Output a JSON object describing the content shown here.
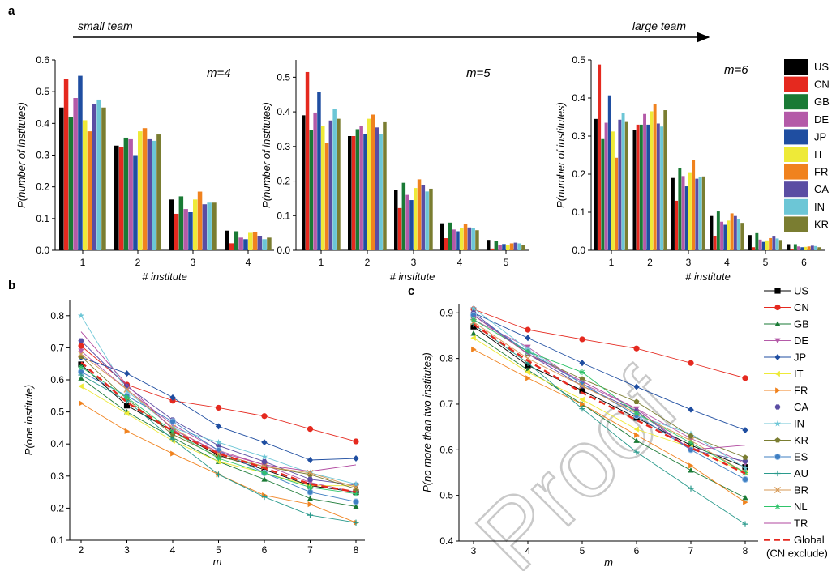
{
  "figure": {
    "panel_labels": [
      "a",
      "b",
      "c"
    ],
    "arrow": {
      "left_label": "small team",
      "right_label": "large team"
    },
    "watermark": "Proof"
  },
  "colors": {
    "US": "#000000",
    "CN": "#e5291f",
    "GB": "#1a7a35",
    "DE": "#b45aa8",
    "JP": "#1f4ea1",
    "IT": "#eeea38",
    "FR": "#f0821e",
    "CA": "#5a4da3",
    "IN": "#6cc6d6",
    "KR": "#7a7d31",
    "ES": "#3f7fc2",
    "AU": "#2a9a8c",
    "BR": "#d79a56",
    "NL": "#2fc46a",
    "TR": "#b0479f",
    "Global": "#e5291f"
  },
  "chart_data": [
    {
      "type": "bar",
      "panel": "a",
      "annotation": "m=4",
      "xlabel": "# institute",
      "ylabel": "P(number of institutes)",
      "ylim": [
        0,
        0.6
      ],
      "yticks": [
        "0.0",
        "0.1",
        "0.2",
        "0.3",
        "0.4",
        "0.5",
        "0.6"
      ],
      "categories": [
        "1",
        "2",
        "3",
        "4"
      ],
      "series": [
        {
          "name": "US",
          "values": [
            0.45,
            0.33,
            0.16,
            0.062
          ]
        },
        {
          "name": "CN",
          "values": [
            0.54,
            0.325,
            0.115,
            0.022
          ]
        },
        {
          "name": "GB",
          "values": [
            0.42,
            0.355,
            0.17,
            0.06
          ]
        },
        {
          "name": "DE",
          "values": [
            0.48,
            0.35,
            0.13,
            0.04
          ]
        },
        {
          "name": "JP",
          "values": [
            0.55,
            0.3,
            0.12,
            0.035
          ]
        },
        {
          "name": "IT",
          "values": [
            0.41,
            0.375,
            0.16,
            0.055
          ]
        },
        {
          "name": "FR",
          "values": [
            0.375,
            0.385,
            0.185,
            0.058
          ]
        },
        {
          "name": "CA",
          "values": [
            0.46,
            0.35,
            0.145,
            0.045
          ]
        },
        {
          "name": "IN",
          "values": [
            0.475,
            0.345,
            0.15,
            0.035
          ]
        },
        {
          "name": "KR",
          "values": [
            0.45,
            0.365,
            0.15,
            0.04
          ]
        }
      ]
    },
    {
      "type": "bar",
      "panel": "a",
      "annotation": "m=5",
      "xlabel": "# institute",
      "ylabel": "P(number of institutes)",
      "ylim": [
        0,
        0.55
      ],
      "yticks": [
        "0.0",
        "0.1",
        "0.2",
        "0.3",
        "0.4",
        "0.5"
      ],
      "categories": [
        "1",
        "2",
        "3",
        "4",
        "5"
      ],
      "series": [
        {
          "name": "US",
          "values": [
            0.39,
            0.33,
            0.175,
            0.078,
            0.03
          ]
        },
        {
          "name": "CN",
          "values": [
            0.515,
            0.33,
            0.122,
            0.035,
            0.005
          ]
        },
        {
          "name": "GB",
          "values": [
            0.348,
            0.35,
            0.195,
            0.08,
            0.028
          ]
        },
        {
          "name": "DE",
          "values": [
            0.398,
            0.36,
            0.16,
            0.06,
            0.015
          ]
        },
        {
          "name": "JP",
          "values": [
            0.458,
            0.335,
            0.145,
            0.055,
            0.018
          ]
        },
        {
          "name": "IT",
          "values": [
            0.36,
            0.38,
            0.18,
            0.065,
            0.016
          ]
        },
        {
          "name": "FR",
          "values": [
            0.31,
            0.392,
            0.205,
            0.075,
            0.02
          ]
        },
        {
          "name": "CA",
          "values": [
            0.375,
            0.355,
            0.188,
            0.066,
            0.022
          ]
        },
        {
          "name": "IN",
          "values": [
            0.408,
            0.335,
            0.17,
            0.064,
            0.02
          ]
        },
        {
          "name": "KR",
          "values": [
            0.38,
            0.37,
            0.178,
            0.058,
            0.015
          ]
        }
      ]
    },
    {
      "type": "bar",
      "panel": "a",
      "annotation": "m=6",
      "xlabel": "# institute",
      "ylabel": "P(number of institutes)",
      "ylim": [
        0,
        0.5
      ],
      "yticks": [
        "0.0",
        "0.1",
        "0.2",
        "0.3",
        "0.4",
        "0.5"
      ],
      "categories": [
        "1",
        "2",
        "3",
        "4",
        "5",
        "6"
      ],
      "series": [
        {
          "name": "US",
          "values": [
            0.345,
            0.315,
            0.19,
            0.09,
            0.04,
            0.016
          ]
        },
        {
          "name": "CN",
          "values": [
            0.488,
            0.33,
            0.13,
            0.037,
            0.008,
            0.003
          ]
        },
        {
          "name": "GB",
          "values": [
            0.292,
            0.33,
            0.215,
            0.102,
            0.045,
            0.016
          ]
        },
        {
          "name": "DE",
          "values": [
            0.335,
            0.358,
            0.195,
            0.075,
            0.028,
            0.01
          ]
        },
        {
          "name": "JP",
          "values": [
            0.407,
            0.33,
            0.168,
            0.067,
            0.022,
            0.008
          ]
        },
        {
          "name": "IT",
          "values": [
            0.312,
            0.365,
            0.205,
            0.078,
            0.026,
            0.009
          ]
        },
        {
          "name": "FR",
          "values": [
            0.243,
            0.385,
            0.238,
            0.097,
            0.032,
            0.01
          ]
        },
        {
          "name": "CA",
          "values": [
            0.343,
            0.333,
            0.188,
            0.09,
            0.036,
            0.012
          ]
        },
        {
          "name": "IN",
          "values": [
            0.36,
            0.325,
            0.192,
            0.082,
            0.031,
            0.011
          ]
        },
        {
          "name": "KR",
          "values": [
            0.337,
            0.368,
            0.194,
            0.072,
            0.027,
            0.008
          ]
        }
      ]
    },
    {
      "type": "line",
      "panel": "b",
      "xlabel": "m",
      "ylabel": "P(one institute)",
      "xlim": [
        2,
        8
      ],
      "ylim": [
        0.1,
        0.85
      ],
      "xticks": [
        "2",
        "3",
        "4",
        "5",
        "6",
        "7",
        "8"
      ],
      "yticks": [
        "0.1",
        "0.2",
        "0.3",
        "0.4",
        "0.5",
        "0.6",
        "0.7",
        "0.8"
      ],
      "x": [
        2,
        3,
        4,
        5,
        6,
        7,
        8
      ],
      "series": [
        {
          "name": "US",
          "values": [
            0.648,
            0.52,
            0.44,
            0.365,
            0.32,
            0.27,
            0.25
          ]
        },
        {
          "name": "CN",
          "values": [
            0.706,
            0.585,
            0.535,
            0.513,
            0.487,
            0.447,
            0.408
          ]
        },
        {
          "name": "GB",
          "values": [
            0.605,
            0.5,
            0.42,
            0.345,
            0.29,
            0.23,
            0.205
          ]
        },
        {
          "name": "DE",
          "values": [
            0.69,
            0.57,
            0.46,
            0.38,
            0.335,
            0.28,
            0.25
          ]
        },
        {
          "name": "JP",
          "values": [
            0.67,
            0.62,
            0.545,
            0.455,
            0.405,
            0.35,
            0.355
          ]
        },
        {
          "name": "IT",
          "values": [
            0.58,
            0.495,
            0.41,
            0.345,
            0.31,
            0.27,
            0.27
          ]
        },
        {
          "name": "FR",
          "values": [
            0.527,
            0.44,
            0.37,
            0.305,
            0.24,
            0.212,
            0.155
          ]
        },
        {
          "name": "CA",
          "values": [
            0.722,
            0.58,
            0.475,
            0.395,
            0.345,
            0.29,
            0.272
          ]
        },
        {
          "name": "IN",
          "values": [
            0.8,
            0.565,
            0.45,
            0.405,
            0.36,
            0.31,
            0.275
          ]
        },
        {
          "name": "KR",
          "values": [
            0.673,
            0.54,
            0.43,
            0.36,
            0.33,
            0.305,
            0.26
          ]
        },
        {
          "name": "ES",
          "values": [
            0.625,
            0.55,
            0.47,
            0.38,
            0.31,
            0.25,
            0.22
          ]
        },
        {
          "name": "AU",
          "values": [
            0.615,
            0.535,
            0.415,
            0.305,
            0.235,
            0.178,
            0.155
          ]
        },
        {
          "name": "BR",
          "values": [
            0.68,
            0.57,
            0.45,
            0.37,
            0.33,
            0.31,
            0.265
          ]
        },
        {
          "name": "NL",
          "values": [
            0.64,
            0.545,
            0.44,
            0.355,
            0.31,
            0.265,
            0.245
          ]
        },
        {
          "name": "TR",
          "values": [
            0.75,
            0.585,
            0.445,
            0.375,
            0.335,
            0.315,
            0.335
          ]
        },
        {
          "name": "Global",
          "values": [
            0.655,
            0.53,
            0.44,
            0.37,
            0.325,
            0.275,
            0.25
          ]
        }
      ]
    },
    {
      "type": "line",
      "panel": "c",
      "xlabel": "m",
      "ylabel": "P(no more than two institutes)",
      "xlim": [
        3,
        8
      ],
      "ylim": [
        0.4,
        0.92
      ],
      "xticks": [
        "3",
        "4",
        "5",
        "6",
        "7",
        "8"
      ],
      "yticks": [
        "0.4",
        "0.5",
        "0.6",
        "0.7",
        "0.8",
        "0.9"
      ],
      "x": [
        3,
        4,
        5,
        6,
        7,
        8
      ],
      "series": [
        {
          "name": "US",
          "values": [
            0.87,
            0.785,
            0.73,
            0.67,
            0.61,
            0.562
          ]
        },
        {
          "name": "CN",
          "values": [
            0.908,
            0.863,
            0.842,
            0.822,
            0.79,
            0.757
          ]
        },
        {
          "name": "GB",
          "values": [
            0.855,
            0.775,
            0.7,
            0.62,
            0.555,
            0.495
          ]
        },
        {
          "name": "DE",
          "values": [
            0.885,
            0.825,
            0.745,
            0.69,
            0.625,
            0.57
          ]
        },
        {
          "name": "JP",
          "values": [
            0.9,
            0.845,
            0.79,
            0.738,
            0.688,
            0.643
          ]
        },
        {
          "name": "IT",
          "values": [
            0.845,
            0.77,
            0.71,
            0.645,
            0.605,
            0.55
          ]
        },
        {
          "name": "FR",
          "values": [
            0.82,
            0.757,
            0.7,
            0.632,
            0.565,
            0.485
          ]
        },
        {
          "name": "CA",
          "values": [
            0.9,
            0.81,
            0.74,
            0.685,
            0.6,
            0.575
          ]
        },
        {
          "name": "IN",
          "values": [
            0.91,
            0.82,
            0.745,
            0.675,
            0.635,
            0.56
          ]
        },
        {
          "name": "KR",
          "values": [
            0.895,
            0.81,
            0.755,
            0.705,
            0.63,
            0.583
          ]
        },
        {
          "name": "ES",
          "values": [
            0.895,
            0.815,
            0.745,
            0.675,
            0.6,
            0.535
          ]
        },
        {
          "name": "AU",
          "values": [
            0.875,
            0.79,
            0.69,
            0.595,
            0.515,
            0.437
          ]
        },
        {
          "name": "BR",
          "values": [
            0.88,
            0.8,
            0.74,
            0.68,
            0.62,
            0.55
          ]
        },
        {
          "name": "NL",
          "values": [
            0.885,
            0.815,
            0.77,
            0.68,
            0.615,
            0.55
          ]
        },
        {
          "name": "TR",
          "values": [
            0.895,
            0.81,
            0.75,
            0.69,
            0.6,
            0.61
          ]
        },
        {
          "name": "Global",
          "values": [
            0.875,
            0.795,
            0.725,
            0.665,
            0.605,
            0.548
          ]
        }
      ]
    }
  ],
  "legends": {
    "a": [
      "US",
      "CN",
      "GB",
      "DE",
      "JP",
      "IT",
      "FR",
      "CA",
      "IN",
      "KR"
    ],
    "bc": [
      "US",
      "CN",
      "GB",
      "DE",
      "JP",
      "IT",
      "FR",
      "CA",
      "IN",
      "KR",
      "ES",
      "AU",
      "BR",
      "NL",
      "TR",
      "Global"
    ],
    "global_label_line1": "Global",
    "global_label_line2": "(CN exclude)"
  },
  "markers": {
    "US": "square",
    "CN": "circle",
    "GB": "triangle-up",
    "DE": "triangle-down",
    "JP": "diamond",
    "IT": "triangle-left",
    "FR": "triangle-right",
    "CA": "hexagon",
    "IN": "star",
    "KR": "pentagon",
    "ES": "circle-shaded",
    "AU": "plus",
    "BR": "cross",
    "NL": "asterisk",
    "TR": "none",
    "Global": "dashed-line"
  }
}
